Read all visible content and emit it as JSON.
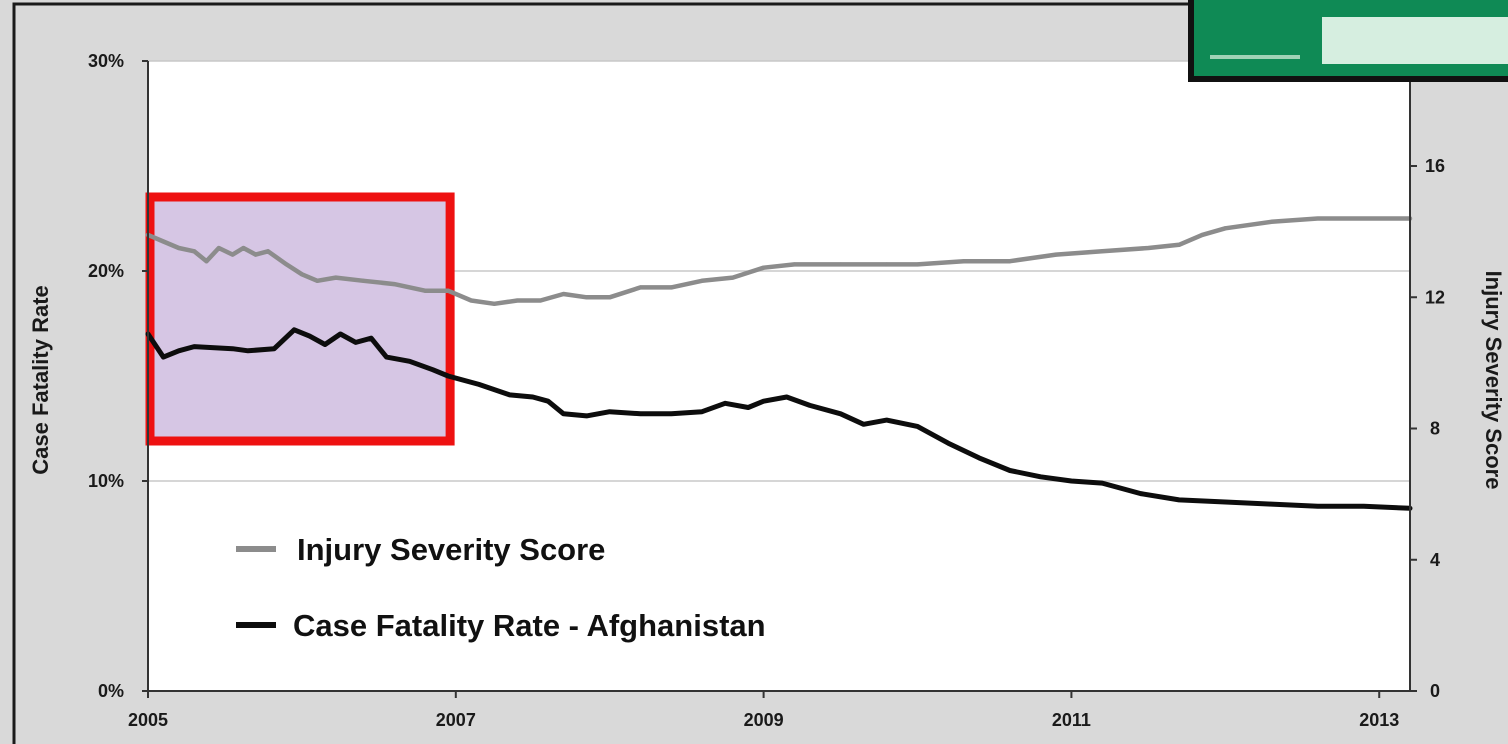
{
  "colors": {
    "background": "#d9d9d9",
    "plot_area": "#ffffff",
    "injury_series": "#8c8c8c",
    "fatality_series": "#0d0d0d",
    "highlight_fill": "#d6c6e4",
    "highlight_border": "#ee1111",
    "inset_green": "#0f8a55",
    "inset_light": "#d6eee0"
  },
  "chart_data": {
    "type": "line",
    "title": "",
    "xlabel": "",
    "ylabel": "Case Fatality Rate",
    "y2label": "Injury Severity Score",
    "xlim": [
      2005,
      2013.2
    ],
    "ylim": [
      0,
      30
    ],
    "y2lim": [
      0,
      19.2
    ],
    "x_ticks": [
      "2005",
      "2007",
      "2009",
      "2011",
      "2013"
    ],
    "y_ticks": [
      "0%",
      "10%",
      "20%",
      "30%"
    ],
    "y2_ticks": [
      "0",
      "4",
      "8",
      "12",
      "16"
    ],
    "grid": "horizontal",
    "legend": {
      "placement": "lower-left"
    },
    "highlight_region": {
      "x": [
        2005,
        2006.95
      ],
      "note": "boxed in red"
    },
    "series": [
      {
        "name": "Injury Severity Score",
        "axis": "right",
        "color": "#8c8c8c",
        "points": [
          [
            2005.0,
            13.9
          ],
          [
            2005.1,
            13.7
          ],
          [
            2005.2,
            13.5
          ],
          [
            2005.3,
            13.4
          ],
          [
            2005.38,
            13.1
          ],
          [
            2005.46,
            13.5
          ],
          [
            2005.55,
            13.3
          ],
          [
            2005.62,
            13.5
          ],
          [
            2005.7,
            13.3
          ],
          [
            2005.78,
            13.4
          ],
          [
            2005.9,
            13.0
          ],
          [
            2006.0,
            12.7
          ],
          [
            2006.1,
            12.5
          ],
          [
            2006.22,
            12.6
          ],
          [
            2006.4,
            12.5
          ],
          [
            2006.6,
            12.4
          ],
          [
            2006.8,
            12.2
          ],
          [
            2006.95,
            12.2
          ],
          [
            2007.1,
            11.9
          ],
          [
            2007.25,
            11.8
          ],
          [
            2007.4,
            11.9
          ],
          [
            2007.55,
            11.9
          ],
          [
            2007.7,
            12.1
          ],
          [
            2007.85,
            12.0
          ],
          [
            2008.0,
            12.0
          ],
          [
            2008.2,
            12.3
          ],
          [
            2008.4,
            12.3
          ],
          [
            2008.6,
            12.5
          ],
          [
            2008.8,
            12.6
          ],
          [
            2009.0,
            12.9
          ],
          [
            2009.2,
            13.0
          ],
          [
            2009.5,
            13.0
          ],
          [
            2009.8,
            13.0
          ],
          [
            2010.0,
            13.0
          ],
          [
            2010.3,
            13.1
          ],
          [
            2010.6,
            13.1
          ],
          [
            2010.9,
            13.3
          ],
          [
            2011.2,
            13.4
          ],
          [
            2011.5,
            13.5
          ],
          [
            2011.7,
            13.6
          ],
          [
            2011.85,
            13.9
          ],
          [
            2012.0,
            14.1
          ],
          [
            2012.3,
            14.3
          ],
          [
            2012.6,
            14.4
          ],
          [
            2012.9,
            14.4
          ],
          [
            2013.1,
            14.4
          ],
          [
            2013.2,
            14.4
          ]
        ]
      },
      {
        "name": "Case Fatality Rate - Afghanistan",
        "axis": "left",
        "color": "#0d0d0d",
        "points": [
          [
            2005.0,
            17.0
          ],
          [
            2005.1,
            15.9
          ],
          [
            2005.2,
            16.2
          ],
          [
            2005.3,
            16.4
          ],
          [
            2005.55,
            16.3
          ],
          [
            2005.65,
            16.2
          ],
          [
            2005.82,
            16.3
          ],
          [
            2005.95,
            17.2
          ],
          [
            2006.05,
            16.9
          ],
          [
            2006.15,
            16.5
          ],
          [
            2006.25,
            17.0
          ],
          [
            2006.35,
            16.6
          ],
          [
            2006.45,
            16.8
          ],
          [
            2006.55,
            15.9
          ],
          [
            2006.7,
            15.7
          ],
          [
            2006.85,
            15.3
          ],
          [
            2006.95,
            15.0
          ],
          [
            2007.15,
            14.6
          ],
          [
            2007.35,
            14.1
          ],
          [
            2007.5,
            14.0
          ],
          [
            2007.6,
            13.8
          ],
          [
            2007.7,
            13.2
          ],
          [
            2007.85,
            13.1
          ],
          [
            2008.0,
            13.3
          ],
          [
            2008.2,
            13.2
          ],
          [
            2008.4,
            13.2
          ],
          [
            2008.6,
            13.3
          ],
          [
            2008.75,
            13.7
          ],
          [
            2008.9,
            13.5
          ],
          [
            2009.0,
            13.8
          ],
          [
            2009.15,
            14.0
          ],
          [
            2009.3,
            13.6
          ],
          [
            2009.5,
            13.2
          ],
          [
            2009.65,
            12.7
          ],
          [
            2009.8,
            12.9
          ],
          [
            2010.0,
            12.6
          ],
          [
            2010.2,
            11.8
          ],
          [
            2010.4,
            11.1
          ],
          [
            2010.6,
            10.5
          ],
          [
            2010.8,
            10.2
          ],
          [
            2011.0,
            10.0
          ],
          [
            2011.2,
            9.9
          ],
          [
            2011.45,
            9.4
          ],
          [
            2011.7,
            9.1
          ],
          [
            2012.0,
            9.0
          ],
          [
            2012.3,
            8.9
          ],
          [
            2012.6,
            8.8
          ],
          [
            2012.9,
            8.8
          ],
          [
            2013.2,
            8.7
          ]
        ]
      }
    ]
  }
}
